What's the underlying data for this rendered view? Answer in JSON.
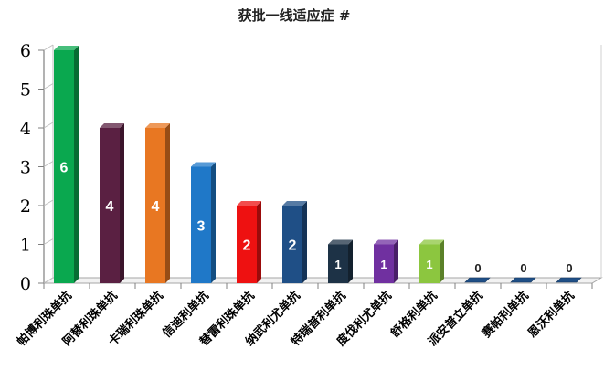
{
  "chart_data": {
    "type": "bar",
    "title": "获批一线适应症 #",
    "xlabel": "",
    "ylabel": "",
    "ylim": [
      0,
      6
    ],
    "yticks": [
      0,
      1,
      2,
      3,
      4,
      5,
      6
    ],
    "grid": false,
    "legend": "none",
    "categories": [
      "帕博利珠单抗",
      "阿替利珠单抗",
      "卡瑞利珠单抗",
      "信迪利单抗",
      "替雷利珠单抗",
      "纳武利尤单抗",
      "特瑞普利单抗",
      "度伐利尤单抗",
      "舒格利单抗",
      "派安普立单抗",
      "赛帕利单抗",
      "恩沃利单抗"
    ],
    "values": [
      6,
      4,
      4,
      3,
      2,
      2,
      1,
      1,
      1,
      0,
      0,
      0
    ],
    "colors": [
      "#0aa84f",
      "#5a2042",
      "#e87722",
      "#1f78c8",
      "#ee1111",
      "#1f4f86",
      "#1d3246",
      "#7030a0",
      "#8cc63f",
      "#1f4f86",
      "#1f4f86",
      "#1f4f86"
    ]
  }
}
